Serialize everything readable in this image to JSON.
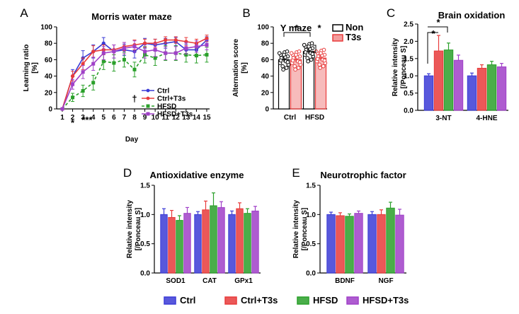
{
  "legend": [
    {
      "label": "Ctrl",
      "color": "#3b3bd6"
    },
    {
      "label": "Ctrl+T3s",
      "color": "#e83b3b"
    },
    {
      "label": "HFSD",
      "color": "#2aa02a"
    },
    {
      "label": "HFSD+T3s",
      "color": "#a040c8"
    }
  ],
  "chart_data": [
    {
      "panel": "A",
      "type": "line",
      "title": "Morris water maze",
      "xlabel": "Day",
      "ylabel": "Learning ratio\n[%]",
      "ylim": [
        0,
        100
      ],
      "yticks": [
        0,
        20,
        40,
        60,
        80,
        100
      ],
      "x": [
        1,
        2,
        3,
        4,
        5,
        6,
        7,
        8,
        9,
        10,
        11,
        12,
        13,
        14,
        15
      ],
      "series": [
        {
          "name": "Ctrl",
          "color": "#3b3bd6",
          "dash": false,
          "marker": "circle",
          "values": [
            0,
            40,
            62,
            70,
            80,
            70,
            72,
            70,
            80,
            78,
            80,
            82,
            72,
            72,
            84
          ],
          "errors": [
            0,
            8,
            9,
            8,
            7,
            8,
            7,
            8,
            6,
            7,
            6,
            5,
            7,
            7,
            4
          ]
        },
        {
          "name": "Ctrl+T3s",
          "color": "#e83b3b",
          "dash": false,
          "marker": "circle",
          "values": [
            0,
            40,
            55,
            70,
            72,
            72,
            76,
            78,
            80,
            80,
            84,
            84,
            82,
            80,
            86
          ],
          "errors": [
            0,
            6,
            7,
            7,
            6,
            6,
            5,
            6,
            5,
            5,
            4,
            4,
            5,
            5,
            4
          ]
        },
        {
          "name": "HFSD",
          "color": "#2aa02a",
          "dash": true,
          "marker": "square",
          "values": [
            0,
            14,
            22,
            32,
            58,
            56,
            60,
            48,
            66,
            62,
            68,
            68,
            66,
            65,
            66
          ],
          "errors": [
            0,
            5,
            7,
            9,
            10,
            10,
            9,
            9,
            10,
            9,
            9,
            9,
            9,
            9,
            9
          ]
        },
        {
          "name": "HFSD+T3s",
          "color": "#a040c8",
          "dash": false,
          "marker": "square",
          "values": [
            0,
            30,
            45,
            55,
            68,
            70,
            74,
            76,
            70,
            72,
            68,
            68,
            74,
            76,
            78
          ],
          "errors": [
            0,
            6,
            8,
            8,
            8,
            8,
            7,
            7,
            8,
            8,
            8,
            8,
            7,
            7,
            6
          ]
        }
      ],
      "annotations": [
        "*",
        "***",
        "†"
      ]
    },
    {
      "panel": "B",
      "type": "bar",
      "title": "Y maze",
      "ylabel": "Alternation score\n[%]",
      "ylim": [
        0,
        100
      ],
      "yticks": [
        0,
        20,
        40,
        60,
        80,
        100
      ],
      "categories": [
        "Ctrl",
        "HFSD"
      ],
      "series": [
        {
          "name": "Non",
          "color": "#ffffff",
          "values": [
            60,
            70
          ],
          "errors": [
            3,
            3
          ]
        },
        {
          "name": "T3s",
          "color": "#e83b3b",
          "values": [
            60,
            62
          ],
          "errors": [
            3,
            3
          ]
        }
      ],
      "legend": [
        "Non",
        "T3s"
      ],
      "annotations": [
        "*",
        "*"
      ]
    },
    {
      "panel": "C",
      "type": "bar",
      "title": "Brain oxidation",
      "ylabel": "Relative intensity\n[/Ponceau  S]",
      "ylim": [
        0,
        2.5
      ],
      "yticks": [
        "0.0",
        "0.5",
        "1.0",
        "1.5",
        "2.0",
        "2.5"
      ],
      "categories": [
        "3-NT",
        "4-HNE"
      ],
      "series": [
        {
          "name": "Ctrl",
          "values": [
            1.0,
            1.0
          ],
          "errors": [
            0.06,
            0.08
          ]
        },
        {
          "name": "Ctrl+T3s",
          "values": [
            1.72,
            1.22
          ],
          "errors": [
            0.45,
            0.1
          ]
        },
        {
          "name": "HFSD",
          "values": [
            1.75,
            1.32
          ],
          "errors": [
            0.2,
            0.1
          ]
        },
        {
          "name": "HFSD+T3s",
          "values": [
            1.45,
            1.26
          ],
          "errors": [
            0.15,
            0.1
          ]
        }
      ],
      "annotations": [
        "*",
        "*"
      ]
    },
    {
      "panel": "D",
      "type": "bar",
      "title": "Antioxidative enzyme",
      "ylabel": "Relative intensity\n[/Ponceau  S]",
      "ylim": [
        0,
        1.5
      ],
      "yticks": [
        "0.0",
        "0.5",
        "1.0",
        "1.5"
      ],
      "categories": [
        "SOD1",
        "CAT",
        "GPx1"
      ],
      "series": [
        {
          "name": "Ctrl",
          "values": [
            1.0,
            1.0,
            1.0
          ],
          "errors": [
            0.1,
            0.05,
            0.06
          ]
        },
        {
          "name": "Ctrl+T3s",
          "values": [
            0.95,
            1.08,
            1.1
          ],
          "errors": [
            0.12,
            0.15,
            0.1
          ]
        },
        {
          "name": "HFSD",
          "values": [
            0.9,
            1.15,
            1.02
          ],
          "errors": [
            0.08,
            0.22,
            0.08
          ]
        },
        {
          "name": "HFSD+T3s",
          "values": [
            1.02,
            1.12,
            1.06
          ],
          "errors": [
            0.1,
            0.1,
            0.08
          ]
        }
      ]
    },
    {
      "panel": "E",
      "type": "bar",
      "title": "Neurotrophic factor",
      "ylabel": "Relative intensity\n[/Ponceau  S]",
      "ylim": [
        0,
        1.5
      ],
      "yticks": [
        "0.0",
        "0.5",
        "1.0",
        "1.5"
      ],
      "categories": [
        "BDNF",
        "NGF"
      ],
      "series": [
        {
          "name": "Ctrl",
          "values": [
            1.0,
            1.0
          ],
          "errors": [
            0.04,
            0.05
          ]
        },
        {
          "name": "Ctrl+T3s",
          "values": [
            0.98,
            1.0
          ],
          "errors": [
            0.05,
            0.08
          ]
        },
        {
          "name": "HFSD",
          "values": [
            0.97,
            1.11
          ],
          "errors": [
            0.04,
            0.1
          ]
        },
        {
          "name": "HFSD+T3s",
          "values": [
            1.02,
            0.99
          ],
          "errors": [
            0.04,
            0.1
          ]
        }
      ]
    }
  ]
}
